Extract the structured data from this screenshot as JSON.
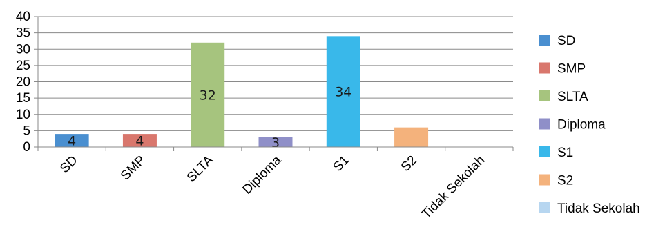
{
  "chart_data": {
    "type": "bar",
    "categories": [
      "SD",
      "SMP",
      "SLTA",
      "Diploma",
      "S1",
      "S2",
      "Tidak Sekolah"
    ],
    "values": [
      4,
      4,
      32,
      3,
      34,
      6,
      0
    ],
    "data_labels": [
      "4",
      "4",
      "32",
      "3",
      "34",
      "",
      ""
    ],
    "ylim": [
      0,
      40
    ],
    "yticks": [
      0,
      5,
      10,
      15,
      20,
      25,
      30,
      35,
      40
    ],
    "grid": true,
    "legend_position": "right",
    "legend": [
      "SD",
      "SMP",
      "SLTA",
      "Diploma",
      "S1",
      "S2",
      "Tidak Sekolah"
    ],
    "colors": [
      "#4a8fd0",
      "#d9776d",
      "#a6c47e",
      "#8f8fc8",
      "#39b8ea",
      "#f4b27c",
      "#b7d6f0"
    ]
  }
}
